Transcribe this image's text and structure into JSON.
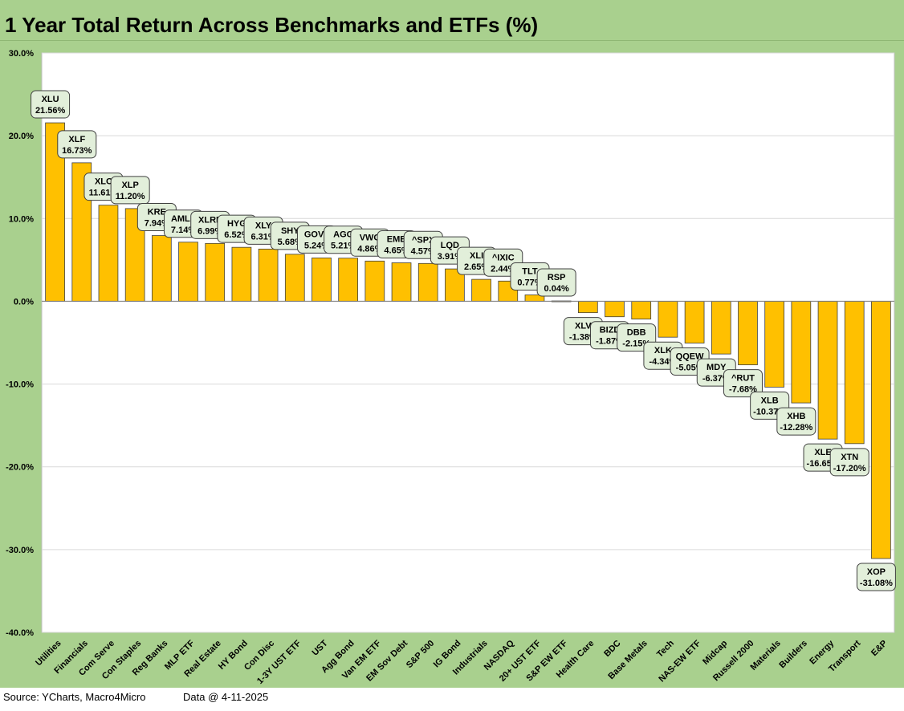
{
  "title": "1 Year Total Return Across Benchmarks and ETFs (%)",
  "footer": {
    "source": "Source: YCharts, Macro4Micro",
    "date": "Data @ 4-11-2025"
  },
  "colors": {
    "background": "#a9d08e",
    "plot_area": "#ffffff",
    "bar": "#ffc000",
    "bar_border": "#404040",
    "label_box": "#e2efda"
  },
  "chart_data": {
    "type": "bar",
    "title": "1 Year Total Return Across Benchmarks and ETFs (%)",
    "xlabel": "",
    "ylabel": "",
    "ylim": [
      -40,
      30
    ],
    "yticks": [
      30,
      20,
      10,
      0,
      -10,
      -20,
      -30,
      -40
    ],
    "ytick_labels": [
      "30.0%",
      "20.0%",
      "10.0%",
      "0.0%",
      "-10.0%",
      "-20.0%",
      "-30.0%",
      "-40.0%"
    ],
    "grid": true,
    "legend": "none",
    "categories": [
      "Utilities",
      "Financials",
      "Com Serve",
      "Con Staples",
      "Reg Banks",
      "MLP ETF",
      "Real Estate",
      "HY Bond",
      "Con Disc",
      "1-3Y UST ETF",
      "UST",
      "Agg Bond",
      "Van EM ETF",
      "EM Sov Debt",
      "S&P 500",
      "IG Bond",
      "Industrials",
      "NASDAQ",
      "20+ UST ETF",
      "S&P EW ETF",
      "Health Care",
      "BDC",
      "Base Metals",
      "Tech",
      "NAS-EW ETF",
      "Midcap",
      "Russell 2000",
      "Materials",
      "Builders",
      "Energy",
      "Transport",
      "E&P"
    ],
    "tickers": [
      "XLU",
      "XLF",
      "XLC",
      "XLP",
      "KRE",
      "AMLP",
      "XLRE",
      "HYG",
      "XLY",
      "SHY",
      "GOVT",
      "AGG",
      "VWO",
      "EMB",
      "^SPX",
      "LQD",
      "XLI",
      "^IXIC",
      "TLT",
      "RSP",
      "XLV",
      "BIZD",
      "DBB",
      "XLK",
      "QQEW",
      "MDY",
      "^RUT",
      "XLB",
      "XHB",
      "XLE",
      "XTN",
      "XOP"
    ],
    "values": [
      21.56,
      16.73,
      11.61,
      11.2,
      7.94,
      7.14,
      6.99,
      6.52,
      6.31,
      5.68,
      5.24,
      5.21,
      4.86,
      4.65,
      4.57,
      3.91,
      2.65,
      2.44,
      0.77,
      0.04,
      -1.38,
      -1.87,
      -2.15,
      -4.34,
      -5.05,
      -6.37,
      -7.68,
      -10.37,
      -12.28,
      -16.65,
      -17.2,
      -31.08
    ],
    "value_labels": [
      "21.56%",
      "16.73%",
      "11.61%",
      "11.20%",
      "7.94%",
      "7.14%",
      "6.99%",
      "6.52%",
      "6.31%",
      "5.68%",
      "5.24%",
      "5.21%",
      "4.86%",
      "4.65%",
      "4.57%",
      "3.91%",
      "2.65%",
      "2.44%",
      "0.77%",
      "0.04%",
      "-1.38%",
      "-1.87%",
      "-2.15%",
      "-4.34%",
      "-5.05%",
      "-6.37%",
      "-7.68%",
      "-10.37%",
      "-12.28%",
      "-16.65%",
      "-17.20%",
      "-31.08%"
    ]
  }
}
